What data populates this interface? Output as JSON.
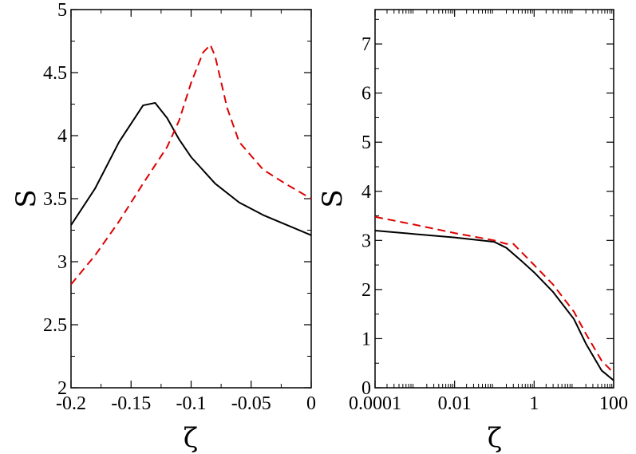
{
  "chart_data": [
    {
      "type": "line",
      "panel": "left",
      "xlabel": "ζ",
      "ylabel": "S",
      "xlim": [
        -0.2,
        0
      ],
      "ylim": [
        2,
        5
      ],
      "x_scale": "linear",
      "x_ticks": [
        -0.2,
        -0.15,
        -0.1,
        -0.05,
        0
      ],
      "x_tick_labels": [
        "-0.2",
        "-0.15",
        "-0.1",
        "-0.05",
        "0"
      ],
      "y_ticks": [
        2,
        2.5,
        3,
        3.5,
        4,
        4.5,
        5
      ],
      "y_tick_labels": [
        "2",
        "2.5",
        "3",
        "3.5",
        "4",
        "4.5",
        "5"
      ],
      "grid": false,
      "series": [
        {
          "color": "#000000",
          "style": "solid",
          "points": [
            [
              -0.2,
              3.29
            ],
            [
              -0.18,
              3.58
            ],
            [
              -0.16,
              3.95
            ],
            [
              -0.14,
              4.24
            ],
            [
              -0.13,
              4.26
            ],
            [
              -0.12,
              4.14
            ],
            [
              -0.11,
              3.97
            ],
            [
              -0.1,
              3.83
            ],
            [
              -0.08,
              3.62
            ],
            [
              -0.06,
              3.47
            ],
            [
              -0.04,
              3.37
            ],
            [
              -0.02,
              3.29
            ],
            [
              0,
              3.21
            ]
          ]
        },
        {
          "color": "#dd0000",
          "style": "dashed",
          "points": [
            [
              -0.2,
              2.82
            ],
            [
              -0.18,
              3.05
            ],
            [
              -0.16,
              3.32
            ],
            [
              -0.14,
              3.62
            ],
            [
              -0.12,
              3.91
            ],
            [
              -0.11,
              4.12
            ],
            [
              -0.1,
              4.42
            ],
            [
              -0.09,
              4.66
            ],
            [
              -0.084,
              4.72
            ],
            [
              -0.08,
              4.63
            ],
            [
              -0.07,
              4.22
            ],
            [
              -0.06,
              3.95
            ],
            [
              -0.04,
              3.73
            ],
            [
              -0.02,
              3.61
            ],
            [
              0,
              3.5
            ]
          ]
        }
      ]
    },
    {
      "type": "line",
      "panel": "right",
      "xlabel": "ζ",
      "ylabel": "S",
      "xlim": [
        0.0001,
        100
      ],
      "ylim": [
        0,
        7.7
      ],
      "x_scale": "log",
      "x_ticks": [
        0.0001,
        0.01,
        1,
        100
      ],
      "x_tick_labels": [
        "0.0001",
        "0.01",
        "1",
        "100"
      ],
      "y_ticks": [
        0,
        1,
        2,
        3,
        4,
        5,
        6,
        7
      ],
      "y_tick_labels": [
        "0",
        "1",
        "2",
        "3",
        "4",
        "5",
        "6",
        "7"
      ],
      "grid": false,
      "series": [
        {
          "color": "#000000",
          "style": "solid",
          "points": [
            [
              0.0001,
              3.2
            ],
            [
              0.001,
              3.13
            ],
            [
              0.01,
              3.06
            ],
            [
              0.1,
              2.97
            ],
            [
              0.2,
              2.85
            ],
            [
              0.5,
              2.57
            ],
            [
              1,
              2.35
            ],
            [
              3,
              1.95
            ],
            [
              10,
              1.4
            ],
            [
              20,
              0.9
            ],
            [
              50,
              0.35
            ],
            [
              100,
              0.15
            ]
          ]
        },
        {
          "color": "#dd0000",
          "style": "dashed",
          "points": [
            [
              0.0001,
              3.48
            ],
            [
              0.001,
              3.32
            ],
            [
              0.01,
              3.15
            ],
            [
              0.1,
              3.0
            ],
            [
              0.2,
              2.93
            ],
            [
              0.3,
              2.93
            ],
            [
              1,
              2.5
            ],
            [
              3,
              2.1
            ],
            [
              10,
              1.55
            ],
            [
              20,
              1.1
            ],
            [
              50,
              0.55
            ],
            [
              100,
              0.3
            ]
          ]
        }
      ]
    }
  ]
}
